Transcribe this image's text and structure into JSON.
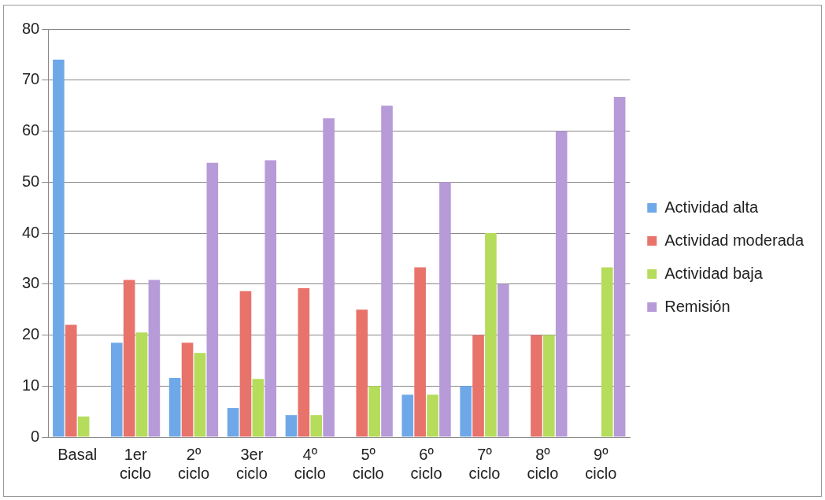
{
  "chart_data": {
    "type": "bar",
    "categories": [
      "Basal",
      "1er ciclo",
      "2º ciclo",
      "3er ciclo",
      "4º ciclo",
      "5º ciclo",
      "6º ciclo",
      "7º ciclo",
      "8º ciclo",
      "9º ciclo"
    ],
    "series": [
      {
        "name": "Actividad alta",
        "color": "#6fa8e8",
        "values": [
          74,
          18.5,
          11.6,
          5.7,
          4.3,
          0,
          8.3,
          10,
          0,
          0
        ]
      },
      {
        "name": "Actividad moderada",
        "color": "#e8736b",
        "values": [
          22,
          30.8,
          18.5,
          28.6,
          29.2,
          25,
          33.3,
          20,
          20,
          0
        ]
      },
      {
        "name": "Actividad baja",
        "color": "#b5dc5a",
        "values": [
          4,
          20.5,
          16.5,
          11.4,
          4.3,
          10,
          8.3,
          40,
          20,
          33.3
        ]
      },
      {
        "name": "Remisión",
        "color": "#b79ad8",
        "values": [
          0,
          30.8,
          53.8,
          54.3,
          62.5,
          65,
          50,
          30,
          60,
          66.7
        ]
      }
    ],
    "ylim": [
      0,
      80
    ],
    "yticks": [
      0,
      10,
      20,
      30,
      40,
      50,
      60,
      70,
      80
    ],
    "grid": "y",
    "legend": "right"
  }
}
